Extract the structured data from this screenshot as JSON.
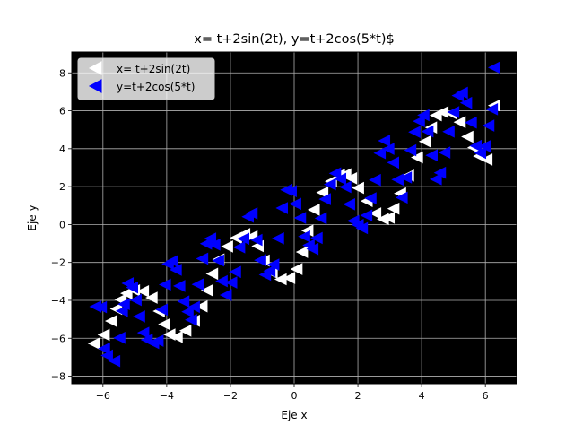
{
  "chart_data": {
    "type": "scatter",
    "title": "x= t+2sin(2t), y=t+2cos(5*t)$",
    "xlabel": "Eje x",
    "ylabel": "Eje y",
    "xlim": [
      -6.98,
      6.98
    ],
    "ylim": [
      -8.4,
      9.1
    ],
    "xticks": [
      -6,
      -4,
      -2,
      0,
      2,
      4,
      6
    ],
    "xtick_labels": [
      "−6",
      "−4",
      "−2",
      "0",
      "2",
      "4",
      "6"
    ],
    "yticks": [
      -8,
      -6,
      -4,
      -2,
      0,
      2,
      4,
      6,
      8
    ],
    "ytick_labels": [
      "−8",
      "−6",
      "−4",
      "−2",
      "0",
      "2",
      "4",
      "6",
      "8"
    ],
    "grid": true,
    "plot_background": "#000000",
    "legend_position": "upper-left",
    "series": [
      {
        "name": "x= t+2sin(2t)",
        "color": "#ffffff",
        "marker": "triangle-left",
        "points": [
          [
            -6.28,
            -6.28
          ],
          [
            -5.97,
            -5.82
          ],
          [
            -5.74,
            -5.09
          ],
          [
            -5.58,
            -4.45
          ],
          [
            -5.44,
            -3.96
          ],
          [
            -5.26,
            -3.63
          ],
          [
            -5.02,
            -3.47
          ],
          [
            -4.74,
            -3.52
          ],
          [
            -4.47,
            -3.86
          ],
          [
            -4.24,
            -4.57
          ],
          [
            -4.07,
            -5.26
          ],
          [
            -3.91,
            -5.8
          ],
          [
            -3.68,
            -5.93
          ],
          [
            -3.41,
            -5.6
          ],
          [
            -3.14,
            -5.08
          ],
          [
            -2.9,
            -4.32
          ],
          [
            -2.73,
            -3.47
          ],
          [
            -2.57,
            -2.6
          ],
          [
            -2.37,
            -1.84
          ],
          [
            -2.1,
            -1.16
          ],
          [
            -1.82,
            -0.7
          ],
          [
            -1.56,
            -0.5
          ],
          [
            -1.33,
            -0.63
          ],
          [
            -1.14,
            -1.14
          ],
          [
            -0.95,
            -1.9
          ],
          [
            -0.7,
            -2.54
          ],
          [
            -0.42,
            -2.89
          ],
          [
            -0.15,
            -2.82
          ],
          [
            0.08,
            -2.35
          ],
          [
            0.25,
            -1.45
          ],
          [
            0.42,
            -0.32
          ],
          [
            0.62,
            0.78
          ],
          [
            0.89,
            1.69
          ],
          [
            1.16,
            2.28
          ],
          [
            1.41,
            2.62
          ],
          [
            1.61,
            2.65
          ],
          [
            1.79,
            2.44
          ],
          [
            2.01,
            1.93
          ],
          [
            2.28,
            1.24
          ],
          [
            2.55,
            0.59
          ],
          [
            2.79,
            0.29
          ],
          [
            2.97,
            0.36
          ],
          [
            3.12,
            0.84
          ],
          [
            3.33,
            1.64
          ],
          [
            3.58,
            2.58
          ],
          [
            3.86,
            3.54
          ],
          [
            4.11,
            4.38
          ],
          [
            4.3,
            5.12
          ],
          [
            4.45,
            5.76
          ],
          [
            4.66,
            5.93
          ],
          [
            4.93,
            5.86
          ],
          [
            5.2,
            5.4
          ],
          [
            5.44,
            4.63
          ],
          [
            5.63,
            4.06
          ],
          [
            5.81,
            3.61
          ],
          [
            6.04,
            3.43
          ],
          [
            6.28,
            6.28
          ]
        ]
      },
      {
        "name": "y=t+2cos(5*t)",
        "color": "#0000ff",
        "marker": "triangle-left",
        "points": [
          [
            -6.23,
            -4.33
          ],
          [
            -6.06,
            -4.36
          ],
          [
            -5.96,
            -6.54
          ],
          [
            -5.87,
            -6.91
          ],
          [
            -5.64,
            -7.2
          ],
          [
            -5.48,
            -5.98
          ],
          [
            -5.4,
            -4.56
          ],
          [
            -5.34,
            -4.2
          ],
          [
            -5.22,
            -3.1
          ],
          [
            -5.08,
            -3.32
          ],
          [
            -4.97,
            -3.98
          ],
          [
            -4.86,
            -4.85
          ],
          [
            -4.73,
            -5.71
          ],
          [
            -4.62,
            -6.08
          ],
          [
            -4.42,
            -6.25
          ],
          [
            -4.28,
            -6.13
          ],
          [
            -4.15,
            -4.49
          ],
          [
            -4.05,
            -3.17
          ],
          [
            -3.96,
            -2.08
          ],
          [
            -3.83,
            -1.93
          ],
          [
            -3.71,
            -2.39
          ],
          [
            -3.6,
            -3.24
          ],
          [
            -3.47,
            -4.06
          ],
          [
            -3.34,
            -4.6
          ],
          [
            -3.23,
            -5.03
          ],
          [
            -3.14,
            -4.35
          ],
          [
            -3.02,
            -3.16
          ],
          [
            -2.88,
            -1.8
          ],
          [
            -2.76,
            -1.01
          ],
          [
            -2.63,
            -0.74
          ],
          [
            -2.5,
            -1.06
          ],
          [
            -2.38,
            -1.9
          ],
          [
            -2.27,
            -2.99
          ],
          [
            -2.14,
            -3.72
          ],
          [
            -1.97,
            -3.06
          ],
          [
            -1.85,
            -2.5
          ],
          [
            -1.72,
            -1.2
          ],
          [
            -1.59,
            -0.75
          ],
          [
            -1.45,
            0.41
          ],
          [
            -1.33,
            0.59
          ],
          [
            -1.18,
            -0.81
          ],
          [
            -1.06,
            -1.88
          ],
          [
            -0.91,
            -2.65
          ],
          [
            -0.77,
            -2.45
          ],
          [
            -0.65,
            -2.11
          ],
          [
            -0.5,
            -0.73
          ],
          [
            -0.38,
            0.87
          ],
          [
            -0.24,
            1.83
          ],
          [
            -0.1,
            1.76
          ],
          [
            0.04,
            1.09
          ],
          [
            0.19,
            0.35
          ],
          [
            0.32,
            -0.63
          ],
          [
            0.46,
            -1.09
          ],
          [
            0.58,
            -1.29
          ],
          [
            0.71,
            -0.71
          ],
          [
            0.84,
            0.33
          ],
          [
            0.97,
            1.34
          ],
          [
            1.13,
            2.12
          ],
          [
            1.29,
            2.7
          ],
          [
            1.45,
            2.41
          ],
          [
            1.61,
            1.98
          ],
          [
            1.73,
            1.07
          ],
          [
            1.86,
            0.19
          ],
          [
            2.0,
            -0.02
          ],
          [
            2.13,
            -0.19
          ],
          [
            2.27,
            0.48
          ],
          [
            2.4,
            1.39
          ],
          [
            2.54,
            2.35
          ],
          [
            2.69,
            3.77
          ],
          [
            2.83,
            4.42
          ],
          [
            2.96,
            3.99
          ],
          [
            3.11,
            3.27
          ],
          [
            3.25,
            2.37
          ],
          [
            3.38,
            1.42
          ],
          [
            3.51,
            2.48
          ],
          [
            3.65,
            3.92
          ],
          [
            3.78,
            4.88
          ],
          [
            3.92,
            5.45
          ],
          [
            4.06,
            5.77
          ],
          [
            4.19,
            4.91
          ],
          [
            4.32,
            3.65
          ],
          [
            4.45,
            2.39
          ],
          [
            4.58,
            2.73
          ],
          [
            4.72,
            3.8
          ],
          [
            4.85,
            4.9
          ],
          [
            5.0,
            5.93
          ],
          [
            5.14,
            6.8
          ],
          [
            5.27,
            6.95
          ],
          [
            5.4,
            6.42
          ],
          [
            5.55,
            5.38
          ],
          [
            5.7,
            4.15
          ],
          [
            5.84,
            3.78
          ],
          [
            5.98,
            4.13
          ],
          [
            6.1,
            5.22
          ],
          [
            6.21,
            6.08
          ],
          [
            6.28,
            8.28
          ]
        ]
      }
    ]
  }
}
